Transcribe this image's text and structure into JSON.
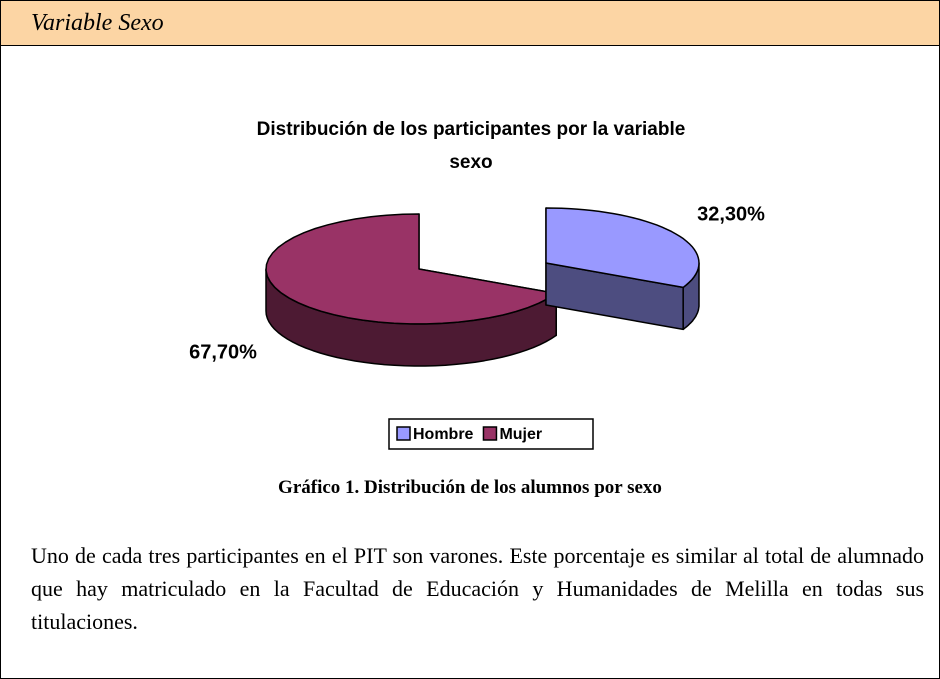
{
  "header": {
    "title": "Variable Sexo"
  },
  "chart_data": {
    "type": "pie",
    "title": "Distribución de los participantes por la variable sexo",
    "categories": [
      "Hombre",
      "Mujer"
    ],
    "values": [
      32.3,
      67.7
    ],
    "value_labels": [
      "32,30%",
      "67,70%"
    ],
    "colors": [
      "#9999ff",
      "#993366"
    ],
    "legend": "bottom"
  },
  "caption": "Gráfico 1. Distribución de los alumnos por sexo",
  "paragraph": "Uno de cada tres participantes en el PIT son varones. Este porcentaje es similar al total de alumnado que hay matriculado en la Facultad de Educación y Humanidades de Melilla en todas sus titulaciones."
}
